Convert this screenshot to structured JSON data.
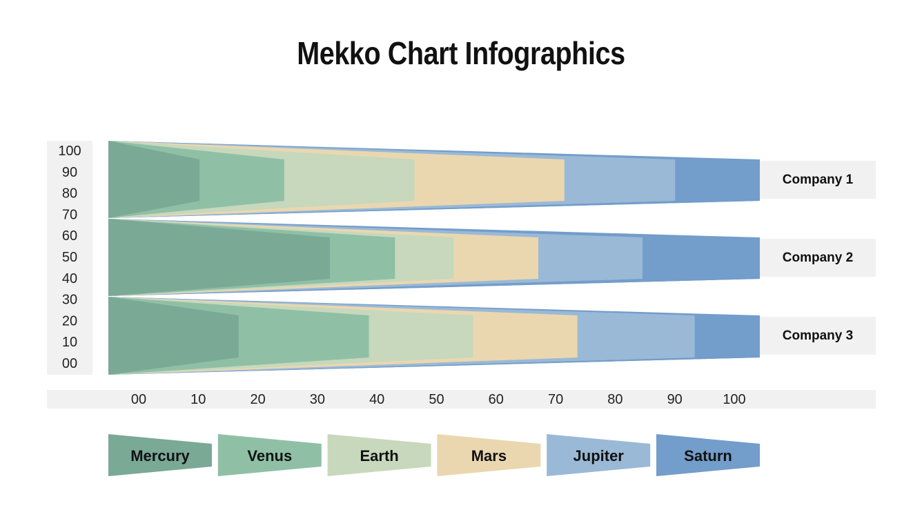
{
  "title": "Mekko Chart Infographics",
  "chart_data": {
    "type": "bar",
    "orientation": "horizontal",
    "stacked": true,
    "title": "Mekko Chart Infographics",
    "y_ticks": [
      "100",
      "90",
      "80",
      "70",
      "60",
      "50",
      "40",
      "30",
      "20",
      "10",
      "00"
    ],
    "x_ticks": [
      "00",
      "10",
      "20",
      "30",
      "40",
      "50",
      "60",
      "70",
      "80",
      "90",
      "100"
    ],
    "xlim": [
      0,
      100
    ],
    "categories": [
      "Company 1",
      "Company 2",
      "Company 3"
    ],
    "series": [
      {
        "name": "Mercury",
        "color": "#7aa996",
        "values": [
          14,
          34,
          20
        ]
      },
      {
        "name": "Venus",
        "color": "#8fc0a6",
        "values": [
          13,
          10,
          20
        ]
      },
      {
        "name": "Earth",
        "color": "#c7d8bc",
        "values": [
          20,
          9,
          16
        ]
      },
      {
        "name": "Mars",
        "color": "#ead7b0",
        "values": [
          23,
          13,
          16
        ]
      },
      {
        "name": "Jupiter",
        "color": "#9ab9d6",
        "values": [
          17,
          16,
          18
        ]
      },
      {
        "name": "Saturn",
        "color": "#739dca",
        "values": [
          13,
          18,
          10
        ]
      }
    ],
    "legend": "bottom"
  }
}
